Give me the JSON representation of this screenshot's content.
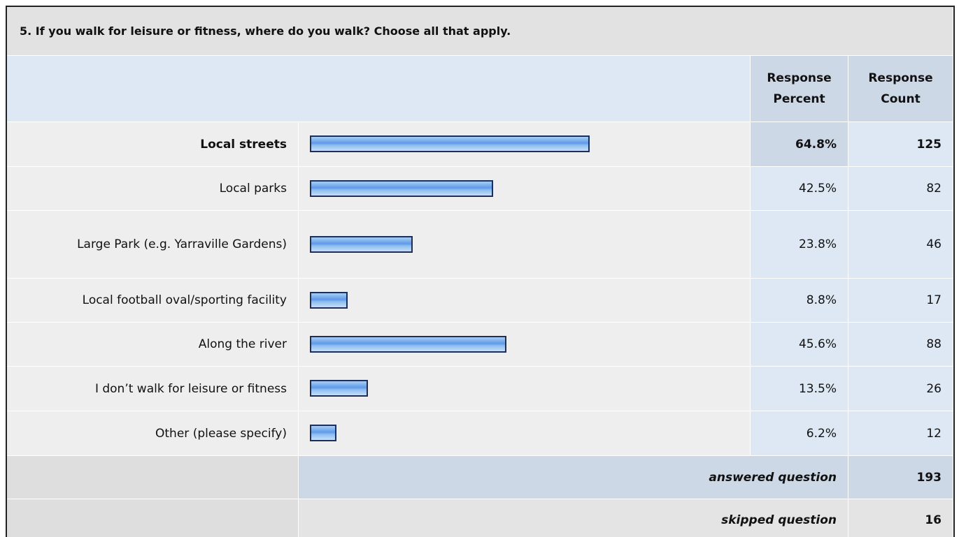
{
  "question": "5. If you walk for leisure or fitness, where do you walk? Choose all that apply.",
  "headers": {
    "percent": "Response Percent",
    "count": "Response Count"
  },
  "rows": [
    {
      "label": "Local streets",
      "percent": 64.8,
      "percent_label": "64.8%",
      "count": 125
    },
    {
      "label": "Local parks",
      "percent": 42.5,
      "percent_label": "42.5%",
      "count": 82
    },
    {
      "label": "Large Park (e.g. Yarraville Gardens)",
      "percent": 23.8,
      "percent_label": "23.8%",
      "count": 46
    },
    {
      "label": "Local football oval/sporting facility",
      "percent": 8.8,
      "percent_label": "8.8%",
      "count": 17
    },
    {
      "label": "Along the river",
      "percent": 45.6,
      "percent_label": "45.6%",
      "count": 88
    },
    {
      "label": "I don’t walk for leisure or fitness",
      "percent": 13.5,
      "percent_label": "13.5%",
      "count": 26
    },
    {
      "label": "Other (please specify)",
      "percent": 6.2,
      "percent_label": "6.2%",
      "count": 12
    }
  ],
  "answered": {
    "label": "answered question",
    "value": 193
  },
  "skipped": {
    "label": "skipped question",
    "value": 16
  }
}
